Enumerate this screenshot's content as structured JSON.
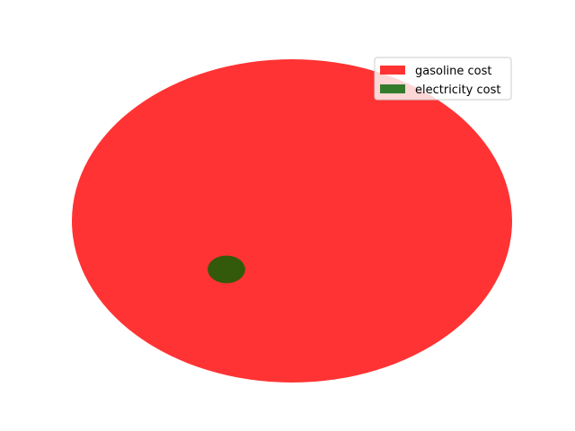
{
  "chart_data": {
    "type": "area",
    "title": "",
    "xlabel": "",
    "ylabel": "",
    "axes_visible": false,
    "grid": false,
    "legend_position": "top-right",
    "series": [
      {
        "name": "gasoline cost",
        "color": "#ff0000",
        "opacity": 0.8,
        "relative_area": 1.0
      },
      {
        "name": "electricity cost",
        "color": "#006400",
        "opacity": 0.8,
        "relative_area": 0.0073
      }
    ]
  }
}
